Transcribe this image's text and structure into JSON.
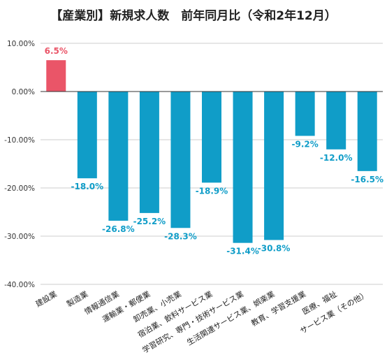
{
  "chart_data": {
    "type": "bar",
    "title": "【産業別】新規求人数　前年同月比（令和2年12月）",
    "xlabel": "",
    "ylabel": "",
    "categories": [
      "建設業",
      "製造業",
      "情報通信業",
      "運輸業・郵便業",
      "卸売業、小売業",
      "宿泊業、飲料サービス業",
      "学習研究、専門・技術サービス業",
      "生活関連サービス業、娯楽業",
      "教育、学習支援業",
      "医療、福祉",
      "サービス業（その他）"
    ],
    "values": [
      6.5,
      -18.0,
      -26.8,
      -25.2,
      -28.3,
      -18.9,
      -31.4,
      -30.8,
      -9.2,
      -12.0,
      -16.5
    ],
    "data_labels": [
      "6.5%",
      "-18.0%",
      "-26.8%",
      "-25.2%",
      "-28.3%",
      "-18.9%",
      "-31.4%",
      "-30.8%",
      "-9.2%",
      "-12.0%",
      "-16.5%"
    ],
    "ylim": [
      -40,
      10
    ],
    "yticks": [
      10,
      0,
      -10,
      -20,
      -30,
      -40
    ],
    "ytick_labels": [
      "10.00%",
      "0.00%",
      "-10.00%",
      "-20.00%",
      "-30.00%",
      "-40.00%"
    ],
    "grid": true,
    "legend": "none",
    "colors": {
      "positive": "#ea5568",
      "negative": "#109dc8",
      "grid": "#cccccc",
      "zero_line": "#333333"
    }
  }
}
